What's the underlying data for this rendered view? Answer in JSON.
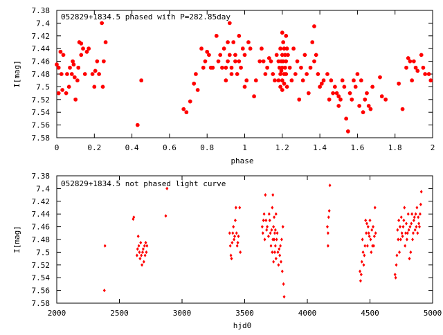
{
  "chart_data": [
    {
      "type": "scatter",
      "title": "052829+1834.5 phased with P=282.85day",
      "xlabel": "phase",
      "ylabel": "I[mag]",
      "xlim": [
        0,
        2
      ],
      "ylim": [
        7.38,
        7.58
      ],
      "y_inverted": true,
      "grid": false,
      "marker_color": "#ff0000",
      "x_ticks": [
        "0",
        "0.2",
        "0.4",
        "0.6",
        "0.8",
        "1",
        "1.2",
        "1.4",
        "1.6",
        "1.8",
        "2"
      ],
      "y_ticks": [
        "7.38",
        "7.4",
        "7.42",
        "7.44",
        "7.46",
        "7.48",
        "7.5",
        "7.52",
        "7.54",
        "7.56",
        "7.58"
      ],
      "points": [
        [
          0.0,
          7.465
        ],
        [
          0.01,
          7.47
        ],
        [
          0.01,
          7.51
        ],
        [
          0.02,
          7.445
        ],
        [
          0.025,
          7.48
        ],
        [
          0.03,
          7.505
        ],
        [
          0.035,
          7.45
        ],
        [
          0.05,
          7.51
        ],
        [
          0.055,
          7.48
        ],
        [
          0.065,
          7.5
        ],
        [
          0.07,
          7.47
        ],
        [
          0.08,
          7.48
        ],
        [
          0.085,
          7.46
        ],
        [
          0.09,
          7.465
        ],
        [
          0.095,
          7.485
        ],
        [
          0.1,
          7.52
        ],
        [
          0.11,
          7.49
        ],
        [
          0.115,
          7.47
        ],
        [
          0.12,
          7.43
        ],
        [
          0.13,
          7.45
        ],
        [
          0.13,
          7.432
        ],
        [
          0.14,
          7.44
        ],
        [
          0.15,
          7.48
        ],
        [
          0.16,
          7.445
        ],
        [
          0.17,
          7.44
        ],
        [
          0.19,
          7.48
        ],
        [
          0.2,
          7.5
        ],
        [
          0.205,
          7.475
        ],
        [
          0.215,
          7.46
        ],
        [
          0.225,
          7.48
        ],
        [
          0.24,
          7.4
        ],
        [
          0.245,
          7.5
        ],
        [
          0.25,
          7.46
        ],
        [
          0.26,
          7.43
        ],
        [
          0.43,
          7.56
        ],
        [
          0.45,
          7.49
        ],
        [
          0.675,
          7.535
        ],
        [
          0.69,
          7.54
        ],
        [
          0.71,
          7.523
        ],
        [
          0.73,
          7.495
        ],
        [
          0.74,
          7.48
        ],
        [
          0.75,
          7.505
        ],
        [
          0.77,
          7.44
        ],
        [
          0.78,
          7.47
        ],
        [
          0.79,
          7.46
        ],
        [
          0.8,
          7.445
        ],
        [
          0.81,
          7.45
        ],
        [
          0.82,
          7.47
        ],
        [
          0.83,
          7.47
        ],
        [
          0.85,
          7.42
        ],
        [
          0.86,
          7.46
        ],
        [
          0.87,
          7.45
        ],
        [
          0.88,
          7.47
        ],
        [
          0.89,
          7.44
        ],
        [
          0.9,
          7.47
        ],
        [
          0.9,
          7.49
        ],
        [
          0.91,
          7.43
        ],
        [
          0.91,
          7.46
        ],
        [
          0.92,
          7.4
        ],
        [
          0.92,
          7.45
        ],
        [
          0.93,
          7.47
        ],
        [
          0.93,
          7.48
        ],
        [
          0.94,
          7.43
        ],
        [
          0.95,
          7.45
        ],
        [
          0.95,
          7.46
        ],
        [
          0.96,
          7.48
        ],
        [
          0.97,
          7.42
        ],
        [
          0.97,
          7.46
        ],
        [
          0.98,
          7.47
        ],
        [
          0.99,
          7.44
        ],
        [
          1.0,
          7.45
        ],
        [
          1.0,
          7.5
        ],
        [
          1.01,
          7.49
        ],
        [
          1.02,
          7.43
        ],
        [
          1.03,
          7.44
        ],
        [
          1.05,
          7.515
        ],
        [
          1.06,
          7.49
        ],
        [
          1.08,
          7.46
        ],
        [
          1.09,
          7.44
        ],
        [
          1.1,
          7.46
        ],
        [
          1.11,
          7.48
        ],
        [
          1.12,
          7.47
        ],
        [
          1.13,
          7.455
        ],
        [
          1.14,
          7.46
        ],
        [
          1.15,
          7.48
        ],
        [
          1.16,
          7.49
        ],
        [
          1.17,
          7.45
        ],
        [
          1.18,
          7.46
        ],
        [
          1.18,
          7.49
        ],
        [
          1.185,
          7.47
        ],
        [
          1.19,
          7.44
        ],
        [
          1.19,
          7.48
        ],
        [
          1.19,
          7.5
        ],
        [
          1.195,
          7.46
        ],
        [
          1.195,
          7.475
        ],
        [
          1.2,
          7.415
        ],
        [
          1.2,
          7.45
        ],
        [
          1.2,
          7.47
        ],
        [
          1.2,
          7.49
        ],
        [
          1.2,
          7.505
        ],
        [
          1.205,
          7.43
        ],
        [
          1.205,
          7.46
        ],
        [
          1.21,
          7.44
        ],
        [
          1.21,
          7.48
        ],
        [
          1.21,
          7.495
        ],
        [
          1.215,
          7.45
        ],
        [
          1.215,
          7.47
        ],
        [
          1.22,
          7.42
        ],
        [
          1.22,
          7.46
        ],
        [
          1.22,
          7.48
        ],
        [
          1.225,
          7.44
        ],
        [
          1.225,
          7.5
        ],
        [
          1.23,
          7.45
        ],
        [
          1.24,
          7.47
        ],
        [
          1.25,
          7.49
        ],
        [
          1.26,
          7.44
        ],
        [
          1.27,
          7.48
        ],
        [
          1.28,
          7.46
        ],
        [
          1.29,
          7.52
        ],
        [
          1.3,
          7.47
        ],
        [
          1.31,
          7.49
        ],
        [
          1.32,
          7.45
        ],
        [
          1.33,
          7.48
        ],
        [
          1.34,
          7.51
        ],
        [
          1.35,
          7.47
        ],
        [
          1.36,
          7.43
        ],
        [
          1.37,
          7.405
        ],
        [
          1.37,
          7.46
        ],
        [
          1.38,
          7.45
        ],
        [
          1.39,
          7.48
        ],
        [
          1.4,
          7.5
        ],
        [
          1.41,
          7.495
        ],
        [
          1.42,
          7.49
        ],
        [
          1.44,
          7.48
        ],
        [
          1.45,
          7.52
        ],
        [
          1.46,
          7.49
        ],
        [
          1.47,
          7.51
        ],
        [
          1.48,
          7.5
        ],
        [
          1.49,
          7.51
        ],
        [
          1.5,
          7.53
        ],
        [
          1.5,
          7.515
        ],
        [
          1.51,
          7.52
        ],
        [
          1.52,
          7.49
        ],
        [
          1.53,
          7.5
        ],
        [
          1.54,
          7.55
        ],
        [
          1.55,
          7.57
        ],
        [
          1.56,
          7.51
        ],
        [
          1.57,
          7.52
        ],
        [
          1.58,
          7.49
        ],
        [
          1.59,
          7.5
        ],
        [
          1.6,
          7.48
        ],
        [
          1.61,
          7.53
        ],
        [
          1.62,
          7.49
        ],
        [
          1.63,
          7.54
        ],
        [
          1.64,
          7.52
        ],
        [
          1.65,
          7.51
        ],
        [
          1.66,
          7.53
        ],
        [
          1.67,
          7.535
        ],
        [
          1.68,
          7.5
        ],
        [
          1.72,
          7.485
        ],
        [
          1.73,
          7.515
        ],
        [
          1.75,
          7.52
        ],
        [
          1.82,
          7.495
        ],
        [
          1.84,
          7.535
        ],
        [
          1.86,
          7.47
        ],
        [
          1.87,
          7.455
        ],
        [
          1.88,
          7.46
        ],
        [
          1.89,
          7.49
        ],
        [
          1.9,
          7.46
        ],
        [
          1.91,
          7.47
        ],
        [
          1.92,
          7.475
        ],
        [
          1.94,
          7.45
        ],
        [
          1.95,
          7.47
        ],
        [
          1.96,
          7.48
        ],
        [
          1.98,
          7.48
        ],
        [
          1.99,
          7.49
        ]
      ]
    },
    {
      "type": "scatter",
      "title": "052829+1834.5 not phased light curve",
      "xlabel": "hjd0",
      "ylabel": "I[mag]",
      "xlim": [
        2000,
        5000
      ],
      "ylim": [
        7.38,
        7.58
      ],
      "y_inverted": true,
      "grid": false,
      "marker_color": "#ff0000",
      "x_ticks": [
        "2000",
        "2500",
        "3000",
        "3500",
        "4000",
        "4500",
        "5000"
      ],
      "y_ticks": [
        "7.38",
        "7.4",
        "7.42",
        "7.44",
        "7.46",
        "7.48",
        "7.5",
        "7.52",
        "7.54",
        "7.56",
        "7.58"
      ],
      "points": [
        [
          2380,
          7.56
        ],
        [
          2385,
          7.49
        ],
        [
          2610,
          7.448
        ],
        [
          2615,
          7.445
        ],
        [
          2640,
          7.505
        ],
        [
          2645,
          7.495
        ],
        [
          2650,
          7.475
        ],
        [
          2655,
          7.49
        ],
        [
          2660,
          7.5
        ],
        [
          2665,
          7.51
        ],
        [
          2670,
          7.485
        ],
        [
          2675,
          7.505
        ],
        [
          2680,
          7.52
        ],
        [
          2685,
          7.5
        ],
        [
          2690,
          7.495
        ],
        [
          2695,
          7.515
        ],
        [
          2700,
          7.49
        ],
        [
          2705,
          7.505
        ],
        [
          2710,
          7.485
        ],
        [
          2715,
          7.5
        ],
        [
          2720,
          7.49
        ],
        [
          2870,
          7.443
        ],
        [
          2880,
          7.4
        ],
        [
          3380,
          7.47
        ],
        [
          3385,
          7.49
        ],
        [
          3390,
          7.505
        ],
        [
          3395,
          7.51
        ],
        [
          3400,
          7.485
        ],
        [
          3405,
          7.47
        ],
        [
          3410,
          7.46
        ],
        [
          3415,
          7.48
        ],
        [
          3420,
          7.475
        ],
        [
          3425,
          7.45
        ],
        [
          3430,
          7.43
        ],
        [
          3435,
          7.47
        ],
        [
          3440,
          7.49
        ],
        [
          3445,
          7.485
        ],
        [
          3450,
          7.475
        ],
        [
          3460,
          7.43
        ],
        [
          3465,
          7.5
        ],
        [
          3640,
          7.46
        ],
        [
          3645,
          7.47
        ],
        [
          3650,
          7.45
        ],
        [
          3655,
          7.44
        ],
        [
          3660,
          7.48
        ],
        [
          3665,
          7.41
        ],
        [
          3670,
          7.45
        ],
        [
          3675,
          7.465
        ],
        [
          3680,
          7.46
        ],
        [
          3690,
          7.475
        ],
        [
          3695,
          7.44
        ],
        [
          3700,
          7.45
        ],
        [
          3705,
          7.47
        ],
        [
          3710,
          7.49
        ],
        [
          3715,
          7.465
        ],
        [
          3720,
          7.43
        ],
        [
          3720,
          7.5
        ],
        [
          3725,
          7.41
        ],
        [
          3725,
          7.48
        ],
        [
          3730,
          7.46
        ],
        [
          3730,
          7.515
        ],
        [
          3735,
          7.445
        ],
        [
          3735,
          7.48
        ],
        [
          3740,
          7.47
        ],
        [
          3740,
          7.5
        ],
        [
          3745,
          7.465
        ],
        [
          3745,
          7.49
        ],
        [
          3750,
          7.44
        ],
        [
          3750,
          7.51
        ],
        [
          3755,
          7.48
        ],
        [
          3760,
          7.47
        ],
        [
          3765,
          7.5
        ],
        [
          3770,
          7.52
        ],
        [
          3775,
          7.495
        ],
        [
          3780,
          7.505
        ],
        [
          3785,
          7.49
        ],
        [
          3790,
          7.515
        ],
        [
          3795,
          7.48
        ],
        [
          3800,
          7.53
        ],
        [
          3805,
          7.46
        ],
        [
          3810,
          7.55
        ],
        [
          3815,
          7.57
        ],
        [
          4160,
          7.46
        ],
        [
          4165,
          7.47
        ],
        [
          4165,
          7.49
        ],
        [
          4170,
          7.445
        ],
        [
          4175,
          7.435
        ],
        [
          4180,
          7.395
        ],
        [
          4420,
          7.53
        ],
        [
          4425,
          7.545
        ],
        [
          4430,
          7.535
        ],
        [
          4435,
          7.515
        ],
        [
          4440,
          7.48
        ],
        [
          4445,
          7.5
        ],
        [
          4450,
          7.52
        ],
        [
          4455,
          7.505
        ],
        [
          4460,
          7.49
        ],
        [
          4465,
          7.45
        ],
        [
          4470,
          7.47
        ],
        [
          4475,
          7.455
        ],
        [
          4480,
          7.49
        ],
        [
          4485,
          7.46
        ],
        [
          4490,
          7.47
        ],
        [
          4495,
          7.475
        ],
        [
          4500,
          7.45
        ],
        [
          4505,
          7.48
        ],
        [
          4510,
          7.5
        ],
        [
          4515,
          7.465
        ],
        [
          4520,
          7.49
        ],
        [
          4525,
          7.46
        ],
        [
          4530,
          7.49
        ],
        [
          4535,
          7.475
        ],
        [
          4540,
          7.43
        ],
        [
          4545,
          7.47
        ],
        [
          4700,
          7.535
        ],
        [
          4705,
          7.54
        ],
        [
          4710,
          7.52
        ],
        [
          4715,
          7.505
        ],
        [
          4720,
          7.465
        ],
        [
          4725,
          7.48
        ],
        [
          4730,
          7.45
        ],
        [
          4735,
          7.5
        ],
        [
          4740,
          7.46
        ],
        [
          4745,
          7.48
        ],
        [
          4750,
          7.445
        ],
        [
          4755,
          7.47
        ],
        [
          4760,
          7.475
        ],
        [
          4765,
          7.46
        ],
        [
          4770,
          7.45
        ],
        [
          4775,
          7.43
        ],
        [
          4780,
          7.49
        ],
        [
          4785,
          7.47
        ],
        [
          4790,
          7.455
        ],
        [
          4795,
          7.48
        ],
        [
          4800,
          7.47
        ],
        [
          4805,
          7.44
        ],
        [
          4810,
          7.465
        ],
        [
          4815,
          7.51
        ],
        [
          4820,
          7.46
        ],
        [
          4825,
          7.5
        ],
        [
          4830,
          7.455
        ],
        [
          4835,
          7.44
        ],
        [
          4840,
          7.48
        ],
        [
          4845,
          7.47
        ],
        [
          4850,
          7.45
        ],
        [
          4855,
          7.445
        ],
        [
          4860,
          7.465
        ],
        [
          4865,
          7.44
        ],
        [
          4870,
          7.46
        ],
        [
          4875,
          7.43
        ],
        [
          4880,
          7.47
        ],
        [
          4885,
          7.445
        ],
        [
          4890,
          7.455
        ],
        [
          4895,
          7.46
        ],
        [
          4900,
          7.44
        ],
        [
          4905,
          7.425
        ],
        [
          4910,
          7.405
        ]
      ]
    }
  ]
}
